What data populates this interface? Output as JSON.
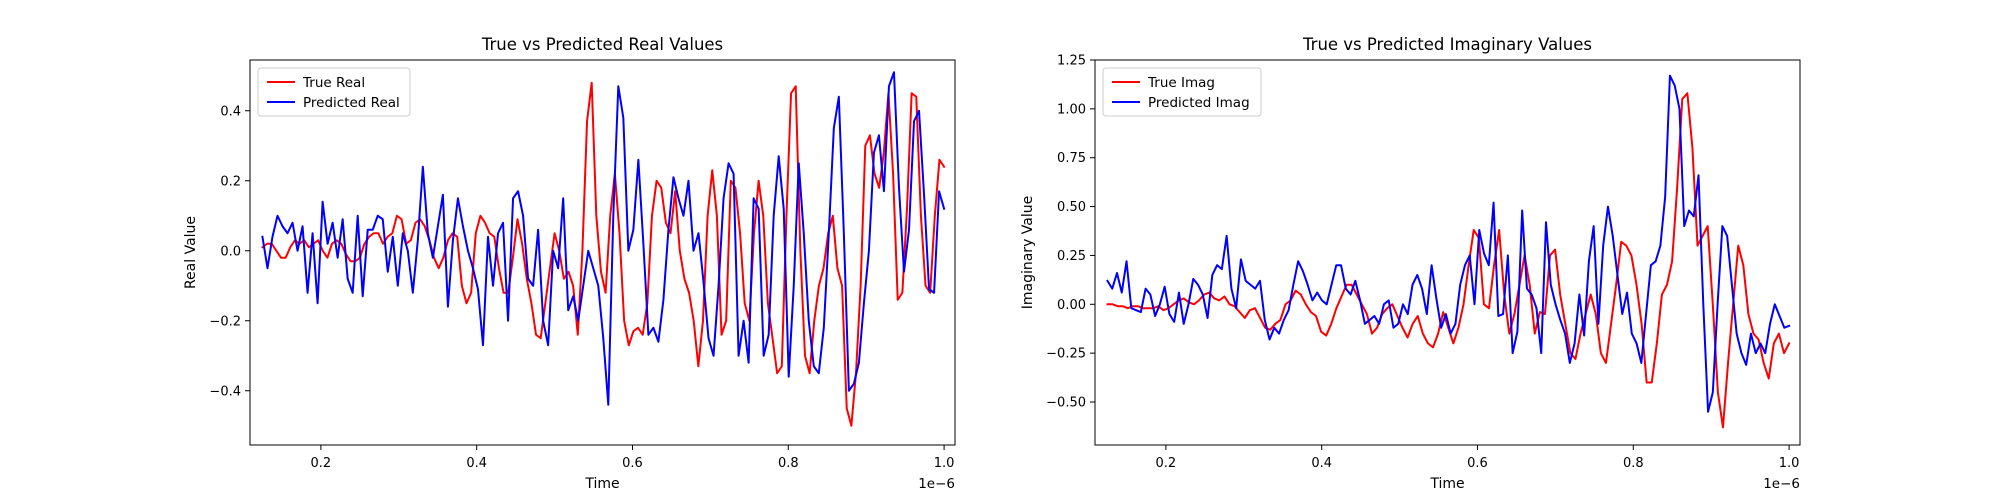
{
  "figure": {
    "background": "#ffffff"
  },
  "chart_data": [
    {
      "type": "line",
      "title": "True vs Predicted Real Values",
      "xlabel": "Time",
      "ylabel": "Real Value",
      "x_offset_label": "1e−6",
      "xlim": [
        0.109,
        1.014
      ],
      "ylim": [
        -0.555,
        0.545
      ],
      "xticks": [
        0.2,
        0.4,
        0.6,
        0.8,
        1.0
      ],
      "xtick_labels": [
        "0.2",
        "0.4",
        "0.6",
        "0.8",
        "1.0"
      ],
      "yticks": [
        -0.4,
        -0.2,
        0.0,
        0.2,
        0.4
      ],
      "ytick_labels": [
        "−0.4",
        "−0.2",
        "0.0",
        "0.2",
        "0.4"
      ],
      "grid": false,
      "legend": "upper-left",
      "x_start": 0.125,
      "x_end": 1.0,
      "series": [
        {
          "name": "True Real",
          "color": "#ff0000",
          "values": [
            0.01,
            0.02,
            0.02,
            0.0,
            -0.02,
            -0.02,
            0.01,
            0.03,
            0.02,
            0.03,
            0.01,
            0.02,
            0.03,
            0.0,
            -0.02,
            0.02,
            0.03,
            0.02,
            -0.01,
            -0.03,
            -0.03,
            -0.02,
            0.02,
            0.04,
            0.05,
            0.05,
            0.02,
            0.04,
            0.05,
            0.1,
            0.09,
            0.02,
            0.03,
            0.08,
            0.09,
            0.07,
            0.03,
            -0.02,
            -0.05,
            -0.02,
            0.03,
            0.05,
            0.04,
            -0.1,
            -0.15,
            -0.12,
            0.05,
            0.1,
            0.08,
            0.05,
            0.04,
            -0.05,
            -0.12,
            -0.12,
            -0.02,
            0.09,
            0.02,
            -0.08,
            -0.15,
            -0.24,
            -0.25,
            -0.15,
            -0.05,
            0.05,
            0.0,
            -0.08,
            -0.06,
            -0.1,
            -0.24,
            0.0,
            0.37,
            0.48,
            0.1,
            -0.06,
            -0.12,
            0.1,
            0.22,
            0.05,
            -0.2,
            -0.27,
            -0.23,
            -0.22,
            -0.24,
            -0.15,
            0.1,
            0.2,
            0.18,
            0.08,
            0.05,
            0.17,
            0.0,
            -0.08,
            -0.12,
            -0.2,
            -0.33,
            -0.2,
            0.1,
            0.23,
            0.1,
            -0.24,
            -0.2,
            0.2,
            0.18,
            0.05,
            -0.15,
            -0.2,
            0.05,
            0.2,
            0.1,
            -0.15,
            -0.25,
            -0.35,
            -0.33,
            0.1,
            0.45,
            0.47,
            0.0,
            -0.3,
            -0.35,
            -0.2,
            -0.1,
            -0.05,
            0.05,
            0.1,
            -0.05,
            -0.1,
            -0.45,
            -0.5,
            -0.35,
            -0.1,
            0.3,
            0.33,
            0.22,
            0.18,
            0.28,
            0.45,
            0.22,
            -0.14,
            -0.12,
            0.12,
            0.45,
            0.44,
            0.1,
            -0.1,
            -0.12,
            0.1,
            0.26,
            0.24
          ]
        },
        {
          "name": "Predicted Real",
          "color": "#0000ff",
          "values": [
            0.04,
            -0.05,
            0.04,
            0.1,
            0.07,
            0.05,
            0.08,
            0.0,
            0.07,
            -0.12,
            0.05,
            -0.15,
            0.14,
            0.02,
            0.08,
            -0.02,
            0.09,
            -0.08,
            -0.12,
            0.1,
            -0.13,
            0.06,
            0.06,
            0.1,
            0.09,
            -0.06,
            0.04,
            -0.1,
            0.05,
            0.0,
            -0.12,
            0.03,
            0.24,
            0.05,
            -0.02,
            0.07,
            0.16,
            -0.16,
            0.03,
            0.15,
            0.07,
            0.0,
            -0.05,
            -0.11,
            -0.27,
            0.04,
            -0.1,
            0.05,
            0.08,
            -0.2,
            0.15,
            0.17,
            0.1,
            -0.08,
            -0.1,
            0.06,
            -0.2,
            -0.27,
            0.0,
            -0.05,
            0.15,
            -0.17,
            -0.13,
            -0.2,
            -0.1,
            0.0,
            -0.05,
            -0.1,
            -0.25,
            -0.44,
            0.1,
            0.47,
            0.38,
            0.0,
            0.06,
            0.26,
            0.02,
            -0.24,
            -0.22,
            -0.26,
            -0.14,
            0.06,
            0.21,
            0.15,
            0.1,
            0.2,
            0.0,
            0.05,
            -0.09,
            -0.25,
            -0.3,
            -0.1,
            0.15,
            0.25,
            0.22,
            -0.3,
            -0.2,
            -0.32,
            0.15,
            0.12,
            -0.3,
            -0.24,
            0.1,
            0.27,
            0.12,
            -0.36,
            -0.1,
            0.25,
            0.05,
            -0.2,
            -0.33,
            -0.35,
            -0.22,
            0.05,
            0.35,
            0.44,
            0.05,
            -0.4,
            -0.38,
            -0.32,
            -0.15,
            0.0,
            0.28,
            0.33,
            0.17,
            0.47,
            0.51,
            0.18,
            -0.06,
            0.06,
            0.37,
            0.4,
            0.16,
            -0.11,
            -0.12,
            0.17,
            0.12
          ]
        }
      ]
    },
    {
      "type": "line",
      "title": "True vs Predicted Imaginary Values",
      "xlabel": "Time",
      "ylabel": "Imaginary Value",
      "x_offset_label": "1e−6",
      "xlim": [
        0.109,
        1.014
      ],
      "ylim": [
        -0.72,
        1.25
      ],
      "xticks": [
        0.2,
        0.4,
        0.6,
        0.8,
        1.0
      ],
      "xtick_labels": [
        "0.2",
        "0.4",
        "0.6",
        "0.8",
        "1.0"
      ],
      "yticks": [
        -0.5,
        -0.25,
        0.0,
        0.25,
        0.5,
        0.75,
        1.0,
        1.25
      ],
      "ytick_labels": [
        "−0.50",
        "−0.25",
        "0.00",
        "0.25",
        "0.50",
        "0.75",
        "1.00",
        "1.25"
      ],
      "grid": false,
      "legend": "upper-left",
      "x_start": 0.125,
      "x_end": 1.0,
      "series": [
        {
          "name": "True Imag",
          "color": "#ff0000",
          "values": [
            0.0,
            0.0,
            -0.01,
            -0.01,
            -0.02,
            -0.01,
            -0.01,
            -0.02,
            -0.02,
            -0.02,
            -0.01,
            -0.03,
            -0.02,
            0.0,
            0.02,
            0.03,
            0.01,
            0.0,
            0.02,
            0.05,
            0.06,
            0.03,
            0.02,
            0.04,
            0.0,
            -0.01,
            -0.04,
            -0.07,
            -0.03,
            -0.02,
            -0.07,
            -0.12,
            -0.13,
            -0.1,
            -0.08,
            0.0,
            0.02,
            0.07,
            0.05,
            0.0,
            -0.04,
            -0.06,
            -0.14,
            -0.16,
            -0.1,
            -0.02,
            0.04,
            0.1,
            0.1,
            0.05,
            0.0,
            -0.05,
            -0.15,
            -0.12,
            -0.05,
            -0.02,
            0.0,
            -0.06,
            -0.12,
            -0.17,
            -0.1,
            -0.06,
            -0.15,
            -0.2,
            -0.22,
            -0.15,
            -0.04,
            -0.12,
            -0.2,
            -0.12,
            0.0,
            0.2,
            0.38,
            0.34,
            0.0,
            -0.02,
            0.2,
            0.38,
            0.05,
            -0.15,
            -0.05,
            0.1,
            0.25,
            0.1,
            -0.15,
            -0.04,
            -0.05,
            0.25,
            0.28,
            0.05,
            -0.1,
            -0.25,
            -0.28,
            -0.15,
            -0.05,
            0.05,
            -0.05,
            -0.25,
            -0.3,
            -0.1,
            0.1,
            0.32,
            0.3,
            0.25,
            0.1,
            -0.1,
            -0.4,
            -0.4,
            -0.2,
            0.05,
            0.1,
            0.22,
            0.6,
            1.05,
            1.08,
            0.8,
            0.3,
            0.35,
            0.4,
            0.0,
            -0.45,
            -0.63,
            -0.3,
            0.0,
            0.3,
            0.2,
            -0.05,
            -0.15,
            -0.18,
            -0.3,
            -0.38,
            -0.2,
            -0.15,
            -0.25,
            -0.2
          ]
        },
        {
          "name": "Predicted Imag",
          "color": "#0000ff",
          "values": [
            0.12,
            0.08,
            0.16,
            0.06,
            0.22,
            -0.02,
            -0.03,
            -0.04,
            0.08,
            0.05,
            -0.06,
            0.0,
            0.09,
            -0.05,
            -0.09,
            0.06,
            -0.1,
            0.0,
            0.13,
            0.1,
            0.05,
            -0.07,
            0.15,
            0.2,
            0.18,
            0.35,
            0.08,
            -0.02,
            0.23,
            0.12,
            0.1,
            0.08,
            0.12,
            -0.08,
            -0.18,
            -0.12,
            -0.15,
            -0.08,
            -0.03,
            0.1,
            0.22,
            0.17,
            0.1,
            0.02,
            0.06,
            0.02,
            0.0,
            0.1,
            0.2,
            0.2,
            0.08,
            0.05,
            0.12,
            0.02,
            -0.1,
            -0.08,
            -0.06,
            -0.1,
            0.0,
            0.02,
            -0.12,
            -0.1,
            0.0,
            -0.05,
            0.1,
            0.15,
            0.08,
            -0.05,
            0.2,
            0.03,
            -0.12,
            -0.05,
            -0.15,
            -0.1,
            0.1,
            0.2,
            0.25,
            0.0,
            0.38,
            0.26,
            0.2,
            0.52,
            -0.06,
            -0.05,
            0.25,
            -0.25,
            -0.14,
            0.48,
            0.08,
            0.05,
            -0.02,
            -0.25,
            0.42,
            0.1,
            0.0,
            -0.08,
            -0.15,
            -0.3,
            -0.2,
            0.05,
            -0.16,
            0.22,
            0.4,
            -0.1,
            0.3,
            0.5,
            0.35,
            0.15,
            -0.05,
            0.06,
            -0.15,
            -0.2,
            -0.3,
            -0.05,
            0.2,
            0.22,
            0.3,
            0.55,
            1.17,
            1.12,
            1.0,
            0.4,
            0.48,
            0.45,
            0.66,
            0.0,
            -0.55,
            -0.45,
            0.0,
            0.4,
            0.35,
            0.1,
            -0.15,
            -0.25,
            -0.31,
            -0.15,
            -0.25,
            -0.2,
            -0.25,
            -0.1,
            0.0,
            -0.06,
            -0.12,
            -0.11
          ]
        }
      ]
    }
  ]
}
